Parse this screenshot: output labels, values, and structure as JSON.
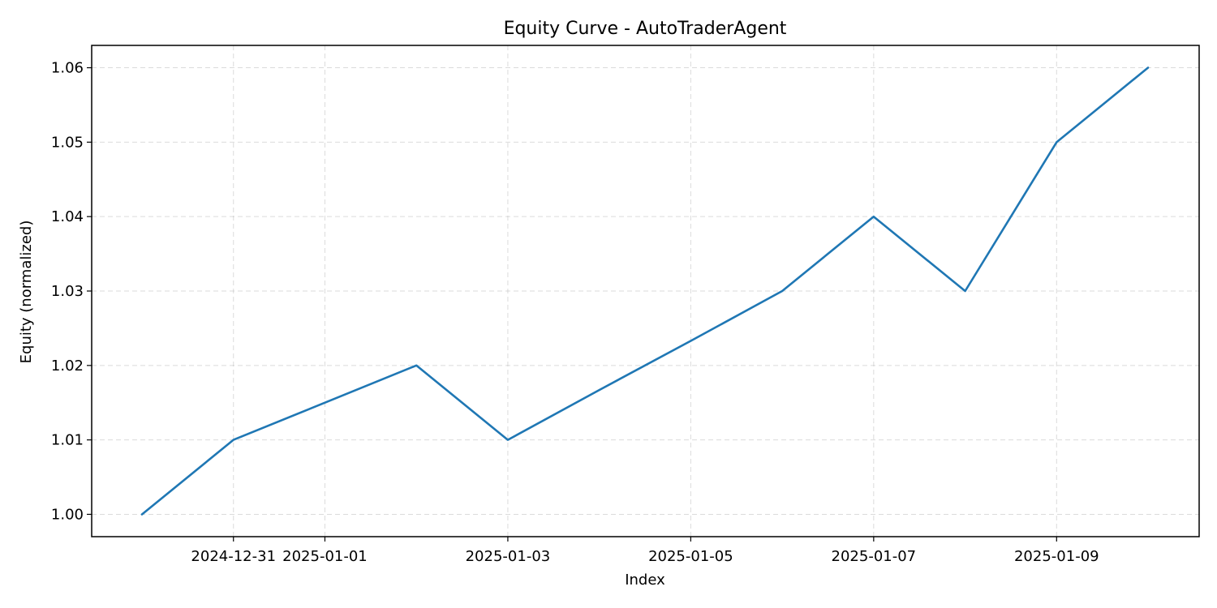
{
  "chart_data": {
    "type": "line",
    "title": "Equity Curve - AutoTraderAgent",
    "xlabel": "Index",
    "ylabel": "Equity (normalized)",
    "x": [
      "2024-12-30",
      "2024-12-31",
      "2025-01-01",
      "2025-01-02",
      "2025-01-03",
      "2025-01-04",
      "2025-01-05",
      "2025-01-06",
      "2025-01-07",
      "2025-01-08",
      "2025-01-09",
      "2025-01-10"
    ],
    "series": [
      {
        "values": [
          1.0,
          1.01,
          1.015,
          1.02,
          1.01,
          1.0167,
          1.0233,
          1.03,
          1.04,
          1.03,
          1.05,
          1.06
        ]
      }
    ],
    "x_ticks": [
      "2024-12-31",
      "2025-01-01",
      "2025-01-03",
      "2025-01-05",
      "2025-01-07",
      "2025-01-09"
    ],
    "y_ticks": [
      "1.00",
      "1.01",
      "1.02",
      "1.03",
      "1.04",
      "1.05",
      "1.06"
    ],
    "ylim": [
      0.997,
      1.063
    ],
    "grid": true,
    "line_color": "#1f77b4"
  }
}
